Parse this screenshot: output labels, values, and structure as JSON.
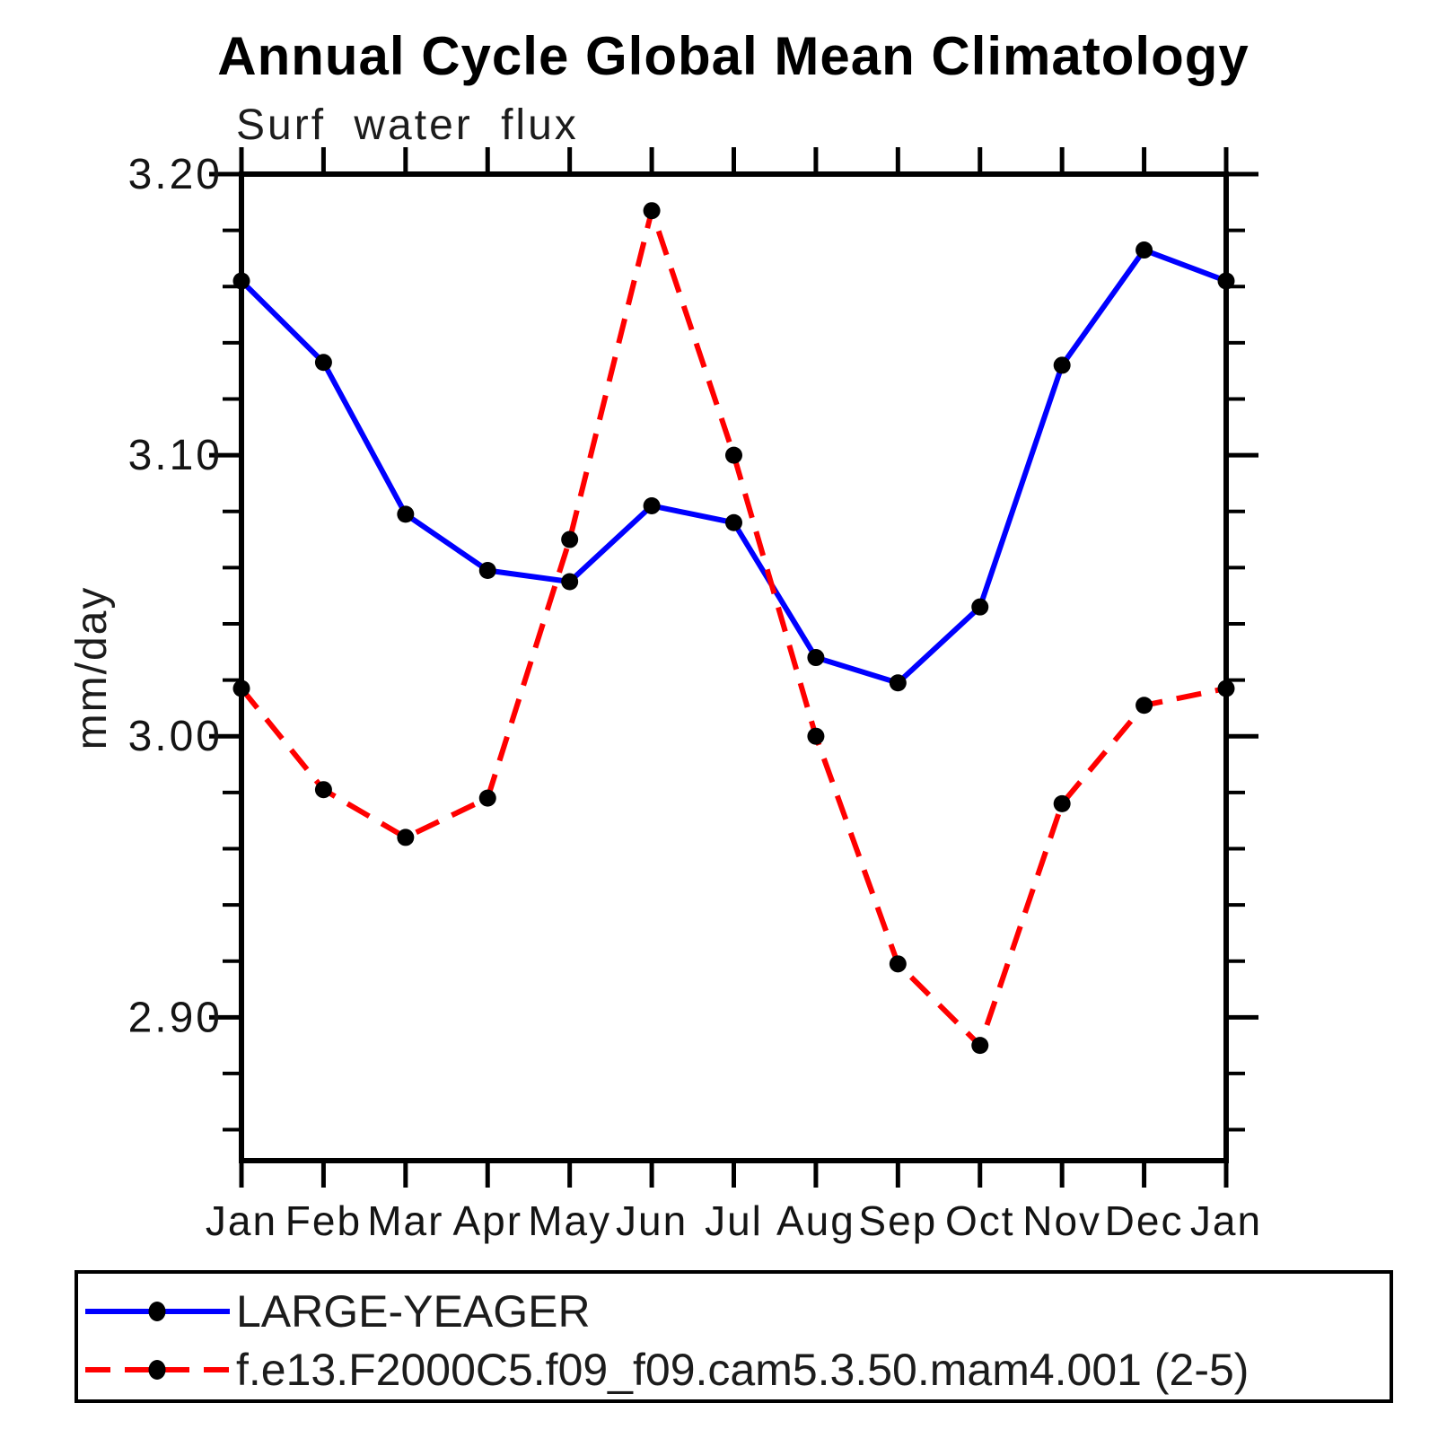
{
  "chart_data": {
    "type": "line",
    "title": "Annual Cycle Global Mean Climatology",
    "subtitle": "Surf water flux",
    "ylabel": "mm/day",
    "xlabel": "",
    "units": "mm/day",
    "categories": [
      "Jan",
      "Feb",
      "Mar",
      "Apr",
      "May",
      "Jun",
      "Jul",
      "Aug",
      "Sep",
      "Oct",
      "Nov",
      "Dec",
      "Jan"
    ],
    "series": [
      {
        "name": "LARGE-YEAGER",
        "color": "#0000ff",
        "line_style": "solid",
        "marker": "filled-circle",
        "marker_color": "#000000",
        "values": [
          3.162,
          3.133,
          3.079,
          3.059,
          3.055,
          3.082,
          3.076,
          3.028,
          3.019,
          3.046,
          3.132,
          3.173,
          3.162
        ]
      },
      {
        "name": "f.e13.F2000C5.f09_f09.cam5.3.50.mam4.001 (2-5)",
        "color": "#ff0000",
        "line_style": "dashed",
        "marker": "filled-circle",
        "marker_color": "#000000",
        "values": [
          3.017,
          2.981,
          2.964,
          2.978,
          3.07,
          3.187,
          3.1,
          3.0,
          2.919,
          2.89,
          2.976,
          3.011,
          3.017
        ]
      }
    ],
    "ylim": [
      2.849,
      3.2
    ],
    "ytick_major": [
      3.2,
      3.1,
      3.0,
      2.9
    ],
    "ytick_labels": [
      "3.20",
      "3.10",
      "3.00",
      "2.90"
    ],
    "ytick_minor_interval": 0.02,
    "grid": "off",
    "legend_position": "bottom-left-box"
  }
}
